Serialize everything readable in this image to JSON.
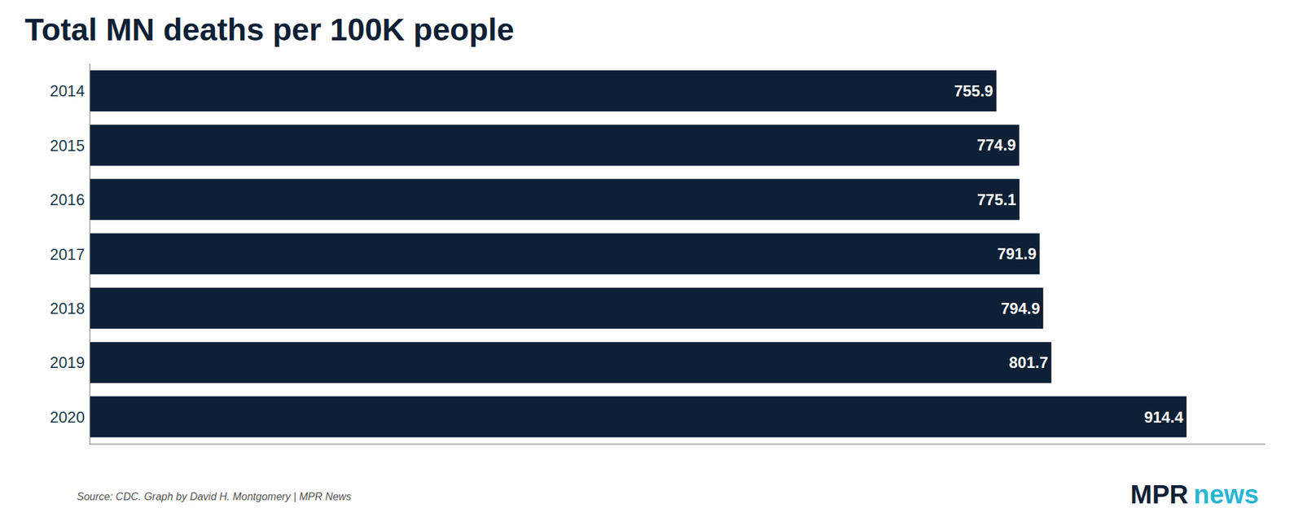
{
  "chart_data": {
    "type": "bar",
    "orientation": "horizontal",
    "title": "Total MN deaths per 100K people",
    "title_color": "#0d2035",
    "categories": [
      "2014",
      "2015",
      "2016",
      "2017",
      "2018",
      "2019",
      "2020"
    ],
    "values": [
      755.9,
      774.9,
      775.1,
      791.9,
      794.9,
      801.7,
      914.4
    ],
    "color": "#0d2035",
    "data_labels": true,
    "data_label_color": "#ffffff",
    "category_label_color": "#1a3a4a",
    "xlim": [
      0,
      980
    ],
    "tick_labels": "y",
    "grid": false,
    "annotations": [
      {
        "text": "Source: CDC. Graph by David H. Montgomery | MPR News",
        "color": "#555555"
      },
      {
        "text": "MPR",
        "color": "#0d2035"
      },
      {
        "text": "news",
        "color": "#29b5d4"
      }
    ]
  }
}
